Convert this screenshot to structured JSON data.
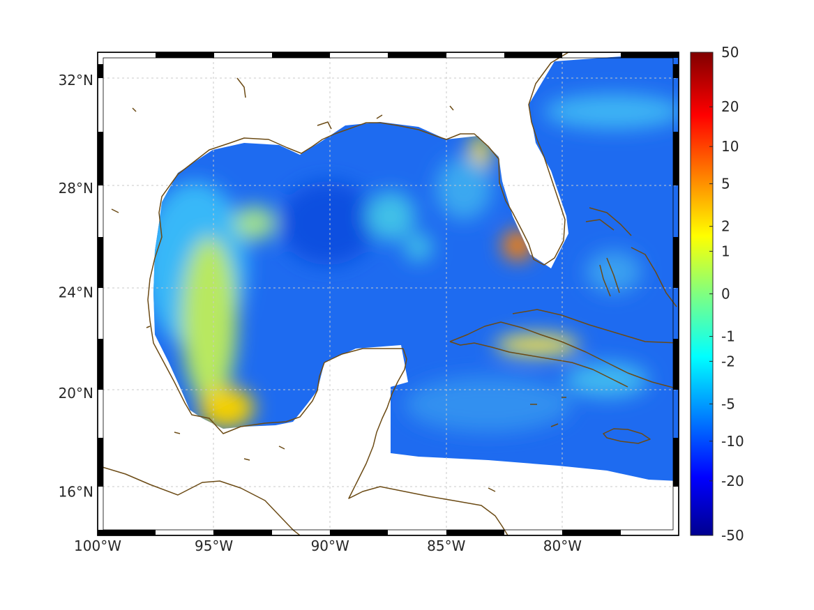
{
  "chart_data": {
    "type": "heatmap",
    "title": "",
    "xlabel": "",
    "ylabel": "",
    "map_extent": {
      "lon": [
        -100,
        -75
      ],
      "lat": [
        14.2,
        33
      ]
    },
    "grid": true,
    "x_ticks": [
      {
        "value": -100,
        "label": "100°W"
      },
      {
        "value": -95,
        "label": "95°W"
      },
      {
        "value": -90,
        "label": "90°W"
      },
      {
        "value": -85,
        "label": "85°W"
      },
      {
        "value": -80,
        "label": "80°W"
      }
    ],
    "y_ticks": [
      {
        "value": 16,
        "label": "16°N"
      },
      {
        "value": 20,
        "label": "20°N"
      },
      {
        "value": 24,
        "label": "24°N"
      },
      {
        "value": 28,
        "label": "28°N"
      },
      {
        "value": 32,
        "label": "32°N"
      }
    ],
    "colorbar": {
      "colormap": "jet",
      "scale": "nonlinear",
      "range": [
        -50,
        50
      ],
      "ticks": [
        {
          "value": 50,
          "label": "50"
        },
        {
          "value": 20,
          "label": "20"
        },
        {
          "value": 10,
          "label": "10"
        },
        {
          "value": 5,
          "label": "5"
        },
        {
          "value": 2,
          "label": "2"
        },
        {
          "value": 1,
          "label": "1"
        },
        {
          "value": 0,
          "label": "0"
        },
        {
          "value": -1,
          "label": "-1"
        },
        {
          "value": -2,
          "label": "-2"
        },
        {
          "value": -5,
          "label": "-5"
        },
        {
          "value": -10,
          "label": "-10"
        },
        {
          "value": -20,
          "label": "-20"
        },
        {
          "value": -50,
          "label": "-50"
        }
      ]
    },
    "field_regions": [
      {
        "name": "western-gulf-band",
        "value": 1.5
      },
      {
        "name": "bay-of-campeche-max",
        "value": 3
      },
      {
        "name": "southwest-florida-max",
        "value": 6
      },
      {
        "name": "florida-panhandle",
        "value": 2
      },
      {
        "name": "central-cuba",
        "value": 2
      },
      {
        "name": "central-gulf",
        "value": -6
      },
      {
        "name": "atlantic-northeast",
        "value": -4
      }
    ],
    "colors": {
      "coastline": "#6b4a14",
      "frame": "#000000",
      "land": "#ffffff",
      "grid": "#cccccc"
    }
  }
}
